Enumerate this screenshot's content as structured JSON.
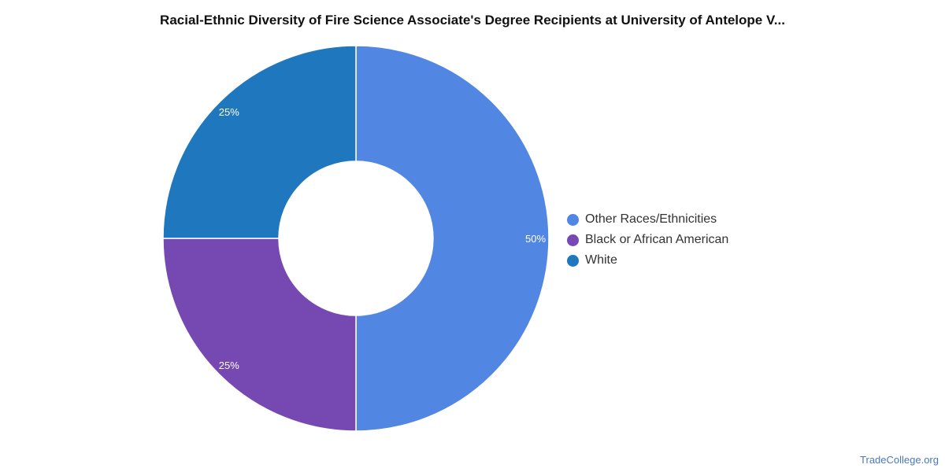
{
  "chart_data": {
    "type": "pie",
    "title": "Racial-Ethnic Diversity of Fire Science Associate's Degree Recipients at University of Antelope V...",
    "donut": true,
    "legend_position": "right",
    "categories": [
      "Other Races/Ethnicities",
      "Black or African American",
      "White"
    ],
    "values": [
      50,
      25,
      25
    ],
    "labels": [
      "50%",
      "25%",
      "25%"
    ],
    "colors": [
      "#5286e3",
      "#7549b1",
      "#1f77be"
    ]
  },
  "watermark": "TradeCollege.org"
}
